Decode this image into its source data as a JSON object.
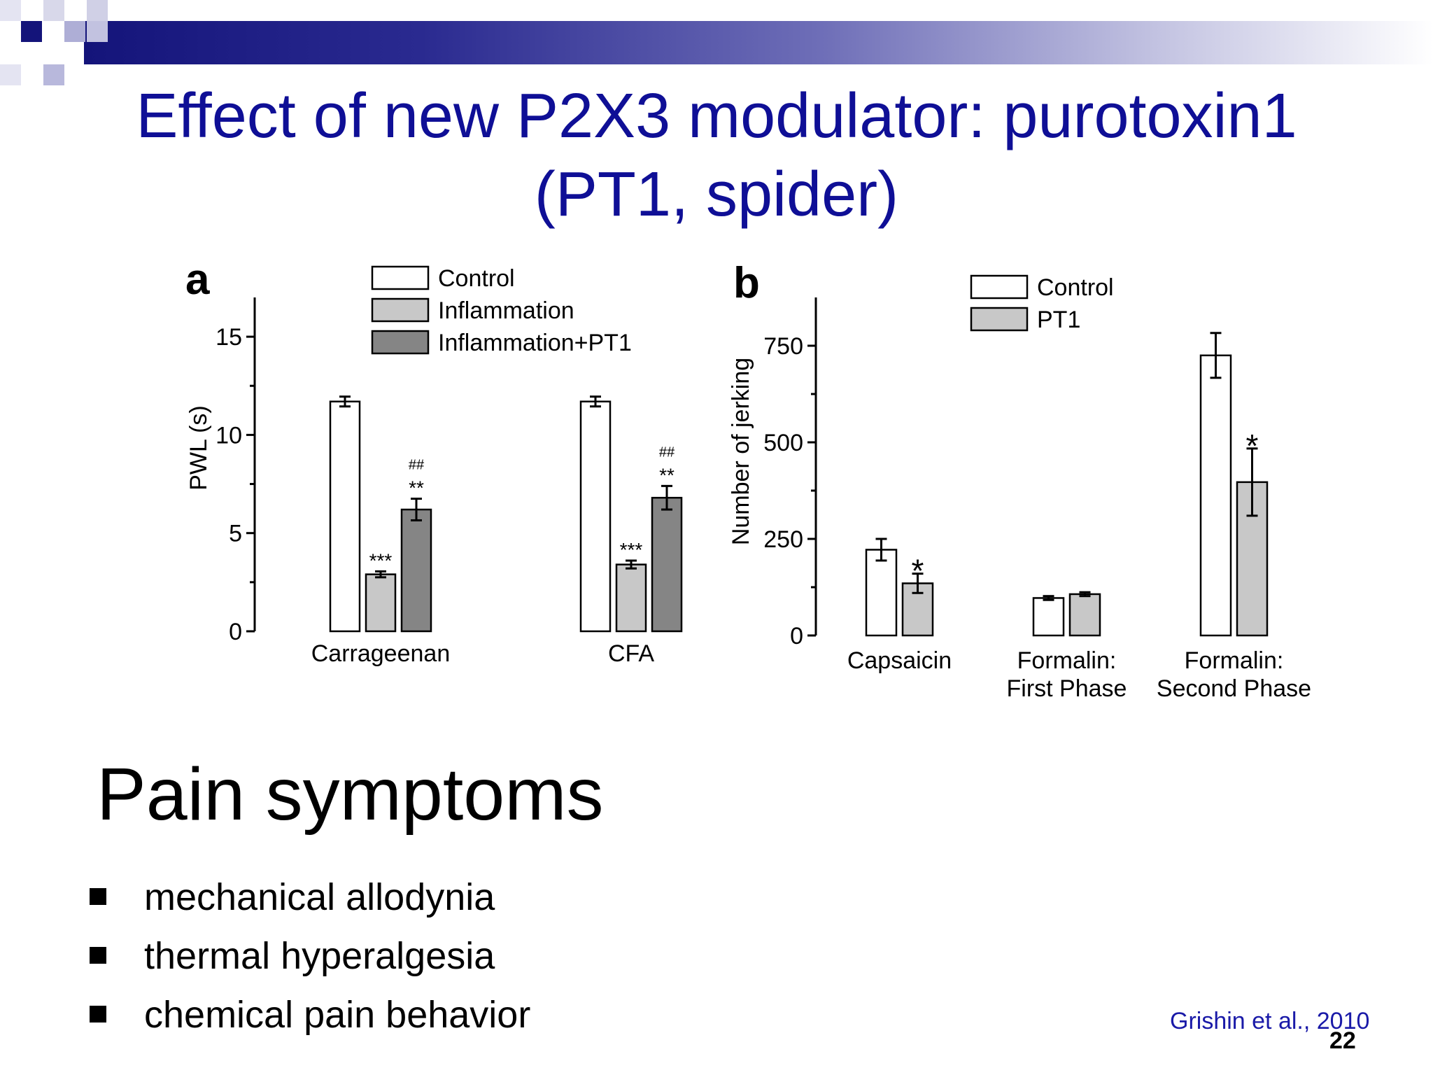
{
  "slide": {
    "title_line1": "Effect of new P2X3 modulator: purotoxin1",
    "title_line2": "(PT1, spider)",
    "section_heading": "Pain symptoms",
    "bullets": [
      "mechanical allodynia",
      "thermal hyperalgesia",
      "chemical pain behavior"
    ],
    "citation": "Grishin et al., 2010",
    "page_number": "22",
    "colors": {
      "title": "#0f0f96",
      "citation": "#1a1aa8",
      "banner_dark": "#14147a"
    }
  },
  "chart_data": [
    {
      "type": "bar",
      "panel_label": "a",
      "ylabel": "PWL (s)",
      "ylim": [
        0,
        17
      ],
      "yticks": [
        "0",
        "5",
        "10",
        "15"
      ],
      "categories": [
        "Carrageenan",
        "CFA"
      ],
      "legend": [
        "Control",
        "Inflammation",
        "Inflammation+PT1"
      ],
      "legend_placement": "top",
      "series": [
        {
          "name": "Control",
          "values": [
            11.7,
            11.7
          ],
          "errors": [
            0.25,
            0.25
          ],
          "color": "#ffffff"
        },
        {
          "name": "Inflammation",
          "values": [
            2.9,
            3.4
          ],
          "errors": [
            0.15,
            0.2
          ],
          "color": "#c8c8c8"
        },
        {
          "name": "Inflammation+PT1",
          "values": [
            6.2,
            6.8
          ],
          "errors": [
            0.55,
            0.6
          ],
          "color": "#858585"
        }
      ],
      "annotations": [
        {
          "category": "Carrageenan",
          "series": "Inflammation",
          "text": "***"
        },
        {
          "category": "Carrageenan",
          "series": "Inflammation+PT1",
          "text": "**"
        },
        {
          "category": "Carrageenan",
          "series": "Inflammation+PT1",
          "text": "##"
        },
        {
          "category": "CFA",
          "series": "Inflammation",
          "text": "***"
        },
        {
          "category": "CFA",
          "series": "Inflammation+PT1",
          "text": "**"
        },
        {
          "category": "CFA",
          "series": "Inflammation+PT1",
          "text": "##"
        }
      ]
    },
    {
      "type": "bar",
      "panel_label": "b",
      "ylabel": "Number of jerking",
      "ylim": [
        0,
        875
      ],
      "yticks": [
        "0",
        "250",
        "500",
        "750"
      ],
      "categories": [
        [
          "Capsaicin"
        ],
        [
          "Formalin:",
          "First Phase"
        ],
        [
          "Formalin:",
          "Second Phase"
        ]
      ],
      "legend": [
        "Control",
        "PT1"
      ],
      "legend_placement": "top",
      "series": [
        {
          "name": "Control",
          "values": [
            222,
            97,
            725
          ],
          "errors": [
            28,
            5,
            58
          ],
          "color": "#ffffff"
        },
        {
          "name": "PT1",
          "values": [
            135,
            107,
            397
          ],
          "errors": [
            25,
            5,
            87
          ],
          "color": "#c8c8c8"
        }
      ],
      "annotations": [
        {
          "category": "Capsaicin",
          "series": "PT1",
          "text": "*"
        },
        {
          "category": "Formalin: Second Phase",
          "series": "PT1",
          "text": "*"
        }
      ]
    }
  ]
}
